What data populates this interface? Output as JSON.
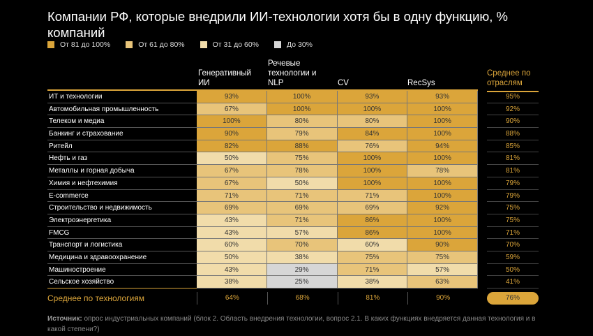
{
  "chart_data": {
    "type": "table",
    "title": "Компании РФ, которые внедрили ИИ-технологии хотя бы в одну функцию, % компаний",
    "legend": [
      {
        "label": "От 81 до 100%",
        "color": "#dba53a",
        "min": 81
      },
      {
        "label": "От 61 до 80%",
        "color": "#e8c47a",
        "min": 61
      },
      {
        "label": "От 31 до 60%",
        "color": "#f1dcaa",
        "min": 31
      },
      {
        "label": "До 30%",
        "color": "#d6d6d6",
        "min": 0
      }
    ],
    "columns": [
      "Генеративный ИИ",
      "Речевые технологии и NLP",
      "CV",
      "RecSys"
    ],
    "avg_header": "Среднее по отраслям",
    "rows": [
      {
        "label": "ИТ и технологии",
        "values": [
          "93%",
          "100%",
          "93%",
          "93%"
        ],
        "avg": "95%"
      },
      {
        "label": "Автомобильная промышленность",
        "values": [
          "67%",
          "100%",
          "100%",
          "100%"
        ],
        "avg": "92%"
      },
      {
        "label": "Телеком и медиа",
        "values": [
          "100%",
          "80%",
          "80%",
          "100%"
        ],
        "avg": "90%"
      },
      {
        "label": "Банкинг и страхование",
        "values": [
          "90%",
          "79%",
          "84%",
          "100%"
        ],
        "avg": "88%"
      },
      {
        "label": "Ритейл",
        "values": [
          "82%",
          "88%",
          "76%",
          "94%"
        ],
        "avg": "85%"
      },
      {
        "label": "Нефть и газ",
        "values": [
          "50%",
          "75%",
          "100%",
          "100%"
        ],
        "avg": "81%"
      },
      {
        "label": "Металлы и горная добыча",
        "values": [
          "67%",
          "78%",
          "100%",
          "78%"
        ],
        "avg": "81%"
      },
      {
        "label": "Химия и нефтехимия",
        "values": [
          "67%",
          "50%",
          "100%",
          "100%"
        ],
        "avg": "79%"
      },
      {
        "label": "E-commerce",
        "values": [
          "71%",
          "71%",
          "71%",
          "100%"
        ],
        "avg": "79%"
      },
      {
        "label": "Строительство и недвижимость",
        "values": [
          "69%",
          "69%",
          "69%",
          "92%"
        ],
        "avg": "75%"
      },
      {
        "label": "Электроэнергетика",
        "values": [
          "43%",
          "71%",
          "86%",
          "100%"
        ],
        "avg": "75%"
      },
      {
        "label": "FMCG",
        "values": [
          "43%",
          "57%",
          "86%",
          "100%"
        ],
        "avg": "71%"
      },
      {
        "label": "Транспорт и логистика",
        "values": [
          "60%",
          "70%",
          "60%",
          "90%"
        ],
        "avg": "70%"
      },
      {
        "label": "Медицина и здравоохранение",
        "values": [
          "50%",
          "38%",
          "75%",
          "75%"
        ],
        "avg": "59%"
      },
      {
        "label": "Машиностроение",
        "values": [
          "43%",
          "29%",
          "71%",
          "57%"
        ],
        "avg": "50%"
      },
      {
        "label": "Сельское хозяйство",
        "values": [
          "38%",
          "25%",
          "38%",
          "63%"
        ],
        "avg": "41%"
      }
    ],
    "avg_row": {
      "label": "Среднее по технологиям",
      "values": [
        "64%",
        "68%",
        "81%",
        "90%"
      ],
      "total": "76%"
    }
  },
  "source": {
    "bold": "Источник:",
    "text": " опрос индустриальных компаний (блок 2. Область внедрения технологии, вопрос 2.1. В каких функциях внедряется данная технология и в какой степени?)"
  }
}
